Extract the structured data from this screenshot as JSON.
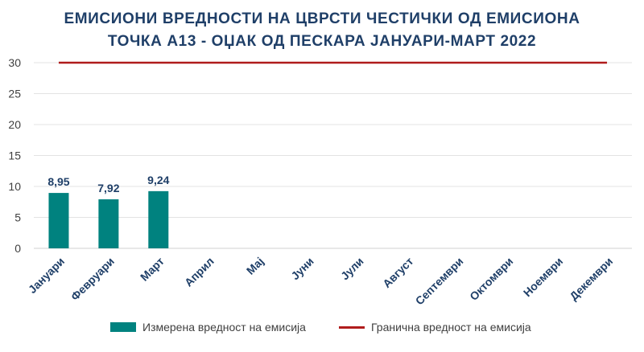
{
  "title": {
    "line1": "ЕМИСИОНИ ВРЕДНОСТИ НА ЦВРСТИ ЧЕСТИЧКИ ОД ЕМИСИОНА",
    "line2": "ТОЧКА А13 - ОЏАК ОД ПЕСКАРА ЈАНУАРИ-МАРТ 2022"
  },
  "legend": {
    "measured": "Измерена вредност на емисија",
    "limit": "Гранична вредност на емисија"
  },
  "colors": {
    "bar": "#00827f",
    "limit": "#b01c1c",
    "title": "#1f3f68",
    "grid": "#e3e3e3",
    "axis": "#404040"
  },
  "chart_data": {
    "type": "bar",
    "categories": [
      "Јануари",
      "Февруари",
      "Март",
      "Април",
      "Мај",
      "Јуни",
      "Јули",
      "Август",
      "Септември",
      "Октомври",
      "Ноември",
      "Декември"
    ],
    "series": [
      {
        "name": "Измерена вредност на емисија",
        "type": "bar",
        "values": [
          8.95,
          7.92,
          9.24,
          null,
          null,
          null,
          null,
          null,
          null,
          null,
          null,
          null
        ],
        "labels": [
          "8,95",
          "7,92",
          "9,24",
          "",
          "",
          "",
          "",
          "",
          "",
          "",
          "",
          ""
        ]
      },
      {
        "name": "Гранична вредност на емисија",
        "type": "line",
        "values": [
          30,
          30,
          30,
          30,
          30,
          30,
          30,
          30,
          30,
          30,
          30,
          30
        ]
      }
    ],
    "yticks": [
      "0",
      "5",
      "10",
      "15",
      "20",
      "25",
      "30"
    ],
    "ylim": [
      0,
      30
    ],
    "grid": true,
    "legend_position": "bottom"
  }
}
